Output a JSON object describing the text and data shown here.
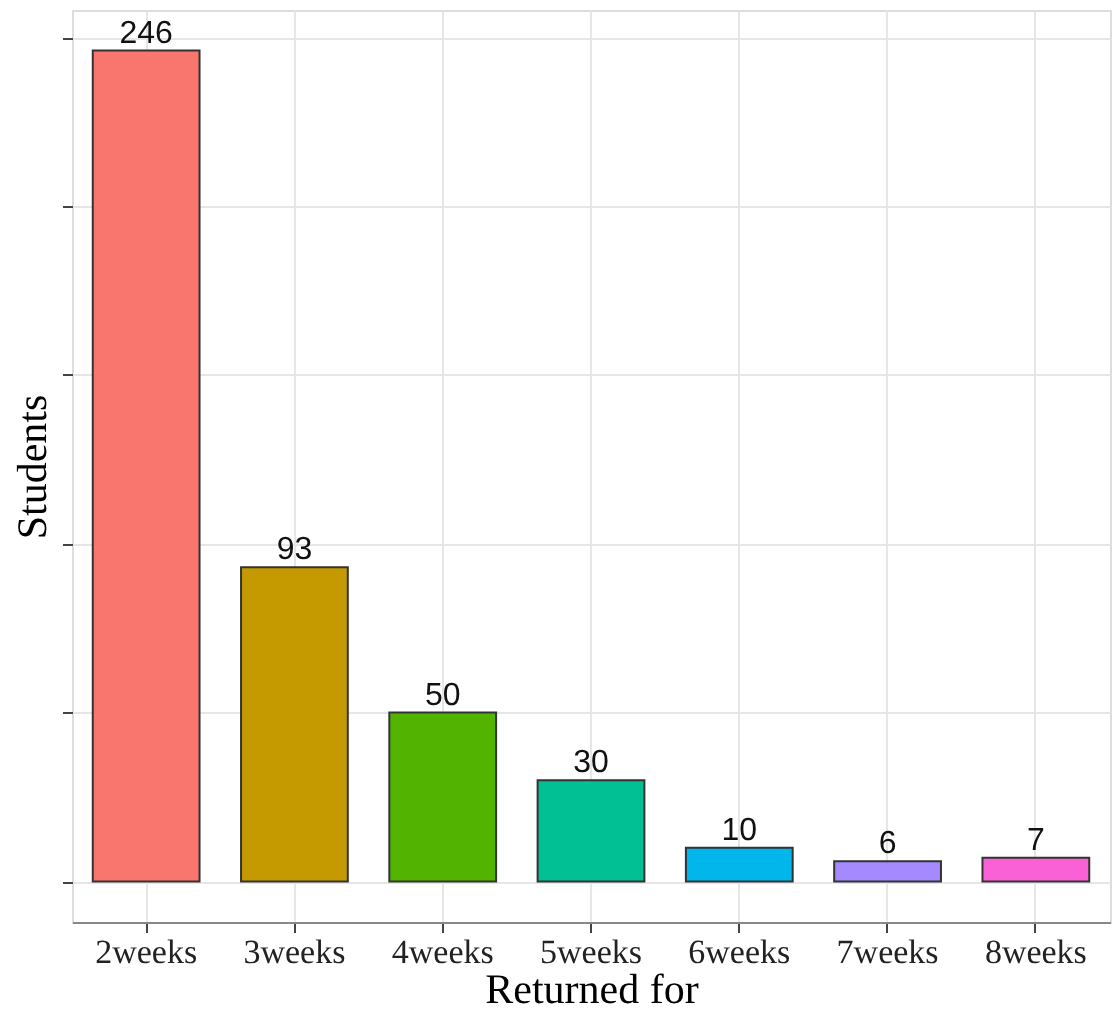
{
  "chart_data": {
    "type": "bar",
    "xlabel": "Returned for",
    "ylabel": "Students",
    "categories": [
      "2weeks",
      "3weeks",
      "4weeks",
      "5weeks",
      "6weeks",
      "7weeks",
      "8weeks"
    ],
    "values": [
      246,
      93,
      50,
      30,
      10,
      6,
      7
    ],
    "colors": [
      "#f8766d",
      "#c49a00",
      "#53b400",
      "#00c094",
      "#00b6eb",
      "#a58aff",
      "#fb61d7"
    ],
    "ylim": [
      -12,
      258
    ],
    "yticks": [
      {
        "value": 0,
        "label": null
      },
      {
        "value": 50,
        "label": null
      },
      {
        "value": 100,
        "label": null
      },
      {
        "value": 150,
        "label": null
      },
      {
        "value": 200,
        "label": null
      },
      {
        "value": 250,
        "label": null
      }
    ],
    "tick_labels": "x",
    "grid": true,
    "data_labels": true
  }
}
